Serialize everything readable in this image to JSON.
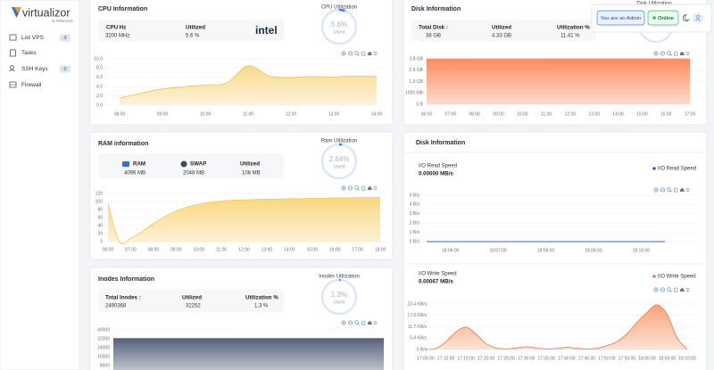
{
  "sidebar": {
    "brand": "virtualizor",
    "brand_sub": "by Softaculous",
    "nav": [
      {
        "label": "List VPS",
        "badge": "3"
      },
      {
        "label": "Tasks"
      },
      {
        "label": "SSH Keys",
        "badge": "0"
      },
      {
        "label": "Firewall"
      }
    ]
  },
  "header": {
    "admin": "You are an Admin",
    "status": "Online"
  },
  "cpu": {
    "title": "CPU Information",
    "gauge": {
      "title": "CPU Utilization",
      "value": 5.6,
      "value_label": "5.6%",
      "caption": "Used"
    },
    "stats": [
      {
        "label": "CPU Hz",
        "value": "3200 MHz"
      },
      {
        "label": "Utilized",
        "value": "5.6 %"
      }
    ],
    "brand": "intel",
    "chart": {
      "type": "area",
      "color": "#f3c24f",
      "fill_color": "#f8d98a",
      "grid": true,
      "ylim": [
        0,
        10
      ],
      "yticks": [
        {
          "value": 0,
          "label": "0.0"
        },
        {
          "value": 2,
          "label": "2.0"
        },
        {
          "value": 4,
          "label": "4.0"
        },
        {
          "value": 6,
          "label": "6.0"
        },
        {
          "value": 8,
          "label": "8.0"
        },
        {
          "value": 10,
          "label": "10.0"
        }
      ],
      "categories": [
        "08:00",
        null,
        "09:00",
        null,
        "10:00",
        null,
        "11:00",
        null,
        "12:00",
        null,
        "13:00",
        null,
        "14:00"
      ],
      "values": [
        1.5,
        2.6,
        3.5,
        4.0,
        4.4,
        4.8,
        8.5,
        6.3,
        6.0,
        6.2,
        6.1,
        6.3,
        6.2
      ]
    }
  },
  "disk": {
    "title": "Disk Information",
    "gauge_title": "Disk Utilization",
    "stats": [
      {
        "label": "Total Disk :",
        "value": "38 GB"
      },
      {
        "label": "Utilized",
        "value": "4.33 GB"
      },
      {
        "label": "Utilization %",
        "value": "11.41 %"
      }
    ],
    "chart": {
      "type": "area",
      "color": "#ff8b5e",
      "fill_color": "#ff8b5e",
      "grid": true,
      "ylim": [
        0,
        3906
      ],
      "yticks": [
        {
          "value": 0,
          "label": "0 B"
        },
        {
          "value": 1000,
          "label": "1000 MB"
        },
        {
          "value": 1953,
          "label": "1.9 GB"
        },
        {
          "value": 2930,
          "label": "2.9 GB"
        },
        {
          "value": 3906,
          "label": "3.8 GB"
        }
      ],
      "categories": [
        "06:00",
        "07:00",
        "08:00",
        "09:00",
        "10:00",
        "11:00",
        "12:00",
        "13:00",
        "14:00",
        "15:00",
        "16:00",
        "17:00"
      ],
      "values": [
        3890,
        3895,
        3900,
        3900,
        3902,
        3903,
        3904,
        3904,
        3905,
        3905,
        3906,
        3906
      ]
    }
  },
  "ram": {
    "title": "RAM information",
    "gauge": {
      "title": "Ram Utilization",
      "value": 2.64,
      "value_label": "2.64%",
      "caption": "Used"
    },
    "stats": [
      {
        "label": "RAM",
        "value": "4096 MB"
      },
      {
        "label": "SWAP",
        "value": "2048 MB"
      },
      {
        "label": "Utilized",
        "value": "108 MB"
      }
    ],
    "chart": {
      "type": "area",
      "color": "#f6c84f",
      "fill_color": "#f9d77e",
      "grid": true,
      "ylim": [
        0,
        120
      ],
      "yticks": [
        0,
        20,
        40,
        60,
        80,
        100,
        120
      ],
      "categories": [
        "06:00",
        null,
        "07:00",
        null,
        "08:00",
        null,
        "09:00",
        null,
        "10:00",
        null,
        "11:00",
        null,
        "12:00",
        null,
        "13:00",
        null,
        "14:00",
        null,
        "15:00",
        null,
        "16:00",
        null,
        "17:00",
        null,
        "18:00"
      ],
      "values": [
        95,
        0,
        8,
        25,
        45,
        62,
        76,
        86,
        93,
        98,
        101,
        103,
        104,
        105,
        106,
        106,
        107,
        107,
        108,
        108,
        109,
        109,
        110,
        110,
        110
      ]
    }
  },
  "io": {
    "title": "Disk Information",
    "read": {
      "label": "I/O Read Speed",
      "value": "0.00000 MB/s",
      "chart": {
        "type": "line",
        "grid": true,
        "ylim": [
          0,
          5
        ],
        "yticks": [
          {
            "value": 0,
            "label": "0 B/s"
          },
          {
            "value": 1,
            "label": "1 B/s"
          },
          {
            "value": 2,
            "label": "2 B/s"
          },
          {
            "value": 3,
            "label": "3 B/s"
          },
          {
            "value": 4,
            "label": "4 B/s"
          },
          {
            "value": 5,
            "label": "5 B/s"
          }
        ],
        "categories": [
          null,
          "18:06:00",
          null,
          "18:07:00",
          null,
          "18:08:00",
          null,
          "18:09:00",
          null,
          "18:10:00",
          null
        ],
        "series": [
          {
            "name": "I/O Read Speed",
            "color": "#3b5bdb",
            "values": [
              0,
              0,
              0,
              0,
              0,
              0,
              0,
              0,
              0,
              0,
              0
            ]
          }
        ]
      }
    },
    "write": {
      "label": "I/O Write Speed",
      "value": "0.00067 MB/s",
      "chart": {
        "type": "area",
        "grid": true,
        "ylim": [
          0,
          23.4
        ],
        "fill_color": "#f7a27a",
        "yticks": [
          {
            "value": 0,
            "label": "0 B/s"
          },
          {
            "value": 5.8,
            "label": "5.8 KB/s"
          },
          {
            "value": 11.7,
            "label": "11.7 KB/s"
          },
          {
            "value": 17.6,
            "label": "17.6 KB/s"
          },
          {
            "value": 23.4,
            "label": "23.4 KB/s"
          }
        ],
        "categories": [
          "17:05:00",
          null,
          "17:10:00",
          null,
          "17:15:00",
          null,
          "17:20:00",
          null,
          "17:25:00",
          null,
          "17:30:00",
          null,
          "17:35:00",
          null,
          "17:40:00",
          null,
          "17:45:00",
          null,
          "17:50:00",
          null,
          "17:55:00",
          null,
          "18:00:00",
          null,
          "18:05:00",
          null,
          "18:10:00"
        ],
        "series": [
          {
            "name": "I/O Write Speed",
            "color": "#f4743b",
            "values": [
              0,
              0.5,
              4,
              9,
              11.5,
              8,
              3,
              0.8,
              0.3,
              0.8,
              1.4,
              0.8,
              0.3,
              0.5,
              1.2,
              0.6,
              0.3,
              0.6,
              2,
              4,
              8,
              14,
              19,
              23,
              18,
              6,
              0
            ]
          }
        ]
      }
    }
  },
  "inodes": {
    "title": "Inodes Information",
    "gauge": {
      "title": "Inodes Utilization",
      "value": 1.3,
      "value_label": "1.3%",
      "caption": "Used"
    },
    "stats": [
      {
        "label": "Total Inodes :",
        "value": "2490368"
      },
      {
        "label": "Utilized",
        "value": "32252"
      },
      {
        "label": "Utilization %",
        "value": "1.3 %"
      }
    ],
    "chart": {
      "type": "area",
      "color": "#56637a",
      "fill_color": "#56637a",
      "grid": true,
      "ylim": [
        0,
        40000
      ],
      "yticks": [
        8000,
        16000,
        24000,
        32000,
        40000
      ],
      "values": [
        32252,
        32252,
        32252,
        32252
      ]
    }
  }
}
